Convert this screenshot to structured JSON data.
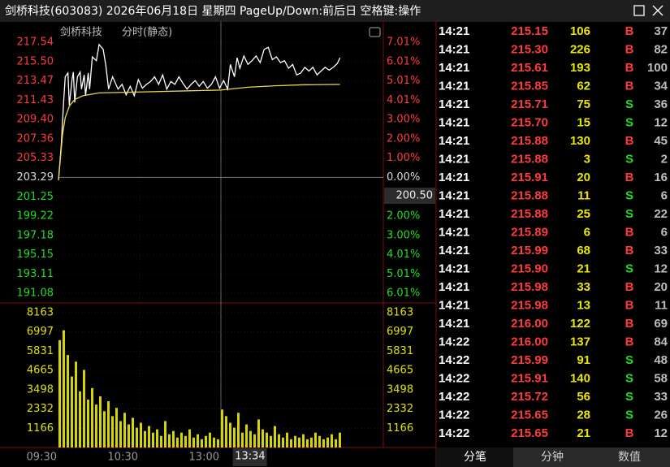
{
  "window": {
    "title": "剑桥科技(603083) 2026年06月18日 星期四 PageUp/Down:前后日 空格键:操作"
  },
  "chart_data": {
    "type": "line",
    "title": "剑桥科技",
    "subtitle": "分时(静态)",
    "xlim": [
      0,
      240
    ],
    "xticks": [
      {
        "value": 0,
        "label": "09:30"
      },
      {
        "value": 60,
        "label": "10:30"
      },
      {
        "value": 120,
        "label": "13:00"
      }
    ],
    "ylim": [
      190.14,
      218.57
    ],
    "yticks": [
      217.54,
      {
        "value": 215.5,
        "label": "215.50"
      },
      213.47,
      211.43,
      {
        "value": 209.4,
        "label": "209.40"
      },
      207.36,
      205.33,
      203.29,
      201.25,
      199.22,
      197.18,
      195.15,
      193.11,
      191.08
    ],
    "y_pct_labels": [
      "7.01%",
      "6.01%",
      "5.01%",
      "4.01%",
      "3.00%",
      "2.00%",
      "1.00%",
      "0.00%",
      null,
      "2.00%",
      "3.00%",
      "4.01%",
      "5.01%",
      "6.01%"
    ],
    "series": [
      {
        "color": "#ffffff",
        "x": [
          0,
          2,
          4,
          5,
          7,
          8,
          10,
          11,
          12,
          14,
          16,
          17,
          19,
          20,
          22,
          23,
          25,
          28,
          30,
          33,
          35,
          37,
          40,
          44,
          47,
          50,
          53,
          56,
          59,
          62,
          65,
          68,
          71,
          74,
          77,
          80,
          83,
          86,
          89,
          92,
          95,
          98,
          101,
          104,
          107,
          110,
          113,
          116,
          119,
          122,
          125,
          127,
          130,
          132,
          134,
          137,
          140,
          143,
          146,
          149,
          152,
          155,
          158,
          161,
          164,
          167,
          170,
          173,
          176,
          179,
          182,
          185,
          188,
          191,
          194,
          197,
          200,
          203,
          206,
          208
        ],
        "values": [
          203.0,
          206.6,
          211.7,
          213.9,
          214.3,
          210.9,
          213.6,
          214.4,
          211.2,
          213.9,
          214.4,
          212.6,
          214.1,
          211.9,
          214.3,
          212.6,
          216.0,
          215.6,
          217.3,
          216.8,
          215.1,
          212.6,
          213.9,
          212.6,
          213.1,
          212.0,
          212.9,
          211.9,
          213.6,
          212.7,
          213.1,
          213.4,
          213.9,
          213.1,
          214.1,
          212.6,
          213.4,
          213.1,
          213.9,
          213.2,
          212.6,
          213.1,
          213.5,
          212.9,
          213.4,
          212.7,
          213.1,
          213.9,
          212.7,
          213.5,
          212.6,
          215.2,
          213.9,
          215.9,
          214.8,
          216.1,
          215.2,
          215.6,
          216.1,
          215.4,
          216.8,
          217.0,
          215.7,
          216.0,
          215.4,
          215.6,
          214.8,
          215.2,
          214.1,
          214.3,
          214.9,
          214.5,
          214.9,
          214.1,
          214.5,
          214.9,
          214.6,
          214.9,
          215.3,
          215.9
        ]
      },
      {
        "color": "#e6d84a",
        "x": [
          0,
          3,
          5,
          8,
          12,
          18,
          30,
          60,
          90,
          120,
          140,
          160,
          180,
          208
        ],
        "values": [
          203.0,
          207.8,
          209.6,
          210.8,
          211.5,
          211.9,
          212.2,
          212.3,
          212.4,
          212.5,
          212.8,
          212.95,
          213.05,
          213.1
        ]
      }
    ],
    "volume": {
      "color": "#d4d400",
      "ylim": [
        0,
        8655
      ],
      "yticks": [
        8163,
        6997,
        5831,
        4665,
        3498,
        2332,
        1166
      ],
      "x": [
        0,
        3,
        6,
        9,
        12,
        15,
        18,
        21,
        24,
        27,
        30,
        33,
        36,
        39,
        42,
        45,
        48,
        51,
        54,
        57,
        60,
        63,
        66,
        69,
        72,
        75,
        78,
        81,
        84,
        87,
        90,
        93,
        96,
        99,
        102,
        105,
        108,
        111,
        114,
        117,
        120,
        123,
        126,
        129,
        132,
        135,
        138,
        141,
        144,
        147,
        150,
        153,
        156,
        159,
        162,
        165,
        168,
        171,
        174,
        177,
        180,
        183,
        186,
        189,
        192,
        195,
        198,
        201,
        204,
        207
      ],
      "values": [
        6500,
        7100,
        5600,
        4300,
        5200,
        3400,
        4700,
        2900,
        3600,
        2600,
        3100,
        2200,
        2800,
        1900,
        2400,
        1600,
        2100,
        1400,
        1800,
        1200,
        1500,
        1000,
        1300,
        900,
        1100,
        700,
        1600,
        800,
        1000,
        600,
        900,
        700,
        1100,
        600,
        800,
        500,
        700,
        900,
        600,
        500,
        2300,
        1900,
        1500,
        1200,
        2100,
        900,
        1400,
        1000,
        800,
        1700,
        1100,
        900,
        700,
        1300,
        800,
        600,
        900,
        500,
        700,
        600,
        800,
        500,
        600,
        900,
        700,
        500,
        600,
        800,
        500,
        900
      ]
    },
    "cursor": {
      "price": {
        "value": 200.5,
        "label": "200.50"
      },
      "time": {
        "value": 154,
        "label": "13:34"
      }
    }
  },
  "trades": {
    "rows": [
      [
        "14:21",
        "215.15",
        "106",
        "B",
        "37"
      ],
      [
        "14:21",
        "215.30",
        "226",
        "B",
        "82"
      ],
      [
        "14:21",
        "215.61",
        "193",
        "B",
        "100"
      ],
      [
        "14:21",
        "215.85",
        "62",
        "B",
        "34"
      ],
      [
        "14:21",
        "215.71",
        "75",
        "S",
        "36"
      ],
      [
        "14:21",
        "215.70",
        "15",
        "S",
        "12"
      ],
      [
        "14:21",
        "215.88",
        "130",
        "B",
        "45"
      ],
      [
        "14:21",
        "215.88",
        "3",
        "S",
        "2"
      ],
      [
        "14:21",
        "215.91",
        "20",
        "B",
        "16"
      ],
      [
        "14:21",
        "215.88",
        "11",
        "S",
        "6"
      ],
      [
        "14:21",
        "215.88",
        "25",
        "S",
        "22"
      ],
      [
        "14:21",
        "215.89",
        "6",
        "B",
        "6"
      ],
      [
        "14:21",
        "215.99",
        "68",
        "B",
        "33"
      ],
      [
        "14:21",
        "215.90",
        "21",
        "S",
        "12"
      ],
      [
        "14:21",
        "215.98",
        "33",
        "B",
        "20"
      ],
      [
        "14:21",
        "215.98",
        "13",
        "B",
        "11"
      ],
      [
        "14:21",
        "216.00",
        "122",
        "B",
        "69"
      ],
      [
        "14:22",
        "216.00",
        "137",
        "B",
        "84"
      ],
      [
        "14:22",
        "215.99",
        "91",
        "S",
        "48"
      ],
      [
        "14:22",
        "215.91",
        "140",
        "S",
        "58"
      ],
      [
        "14:22",
        "215.72",
        "56",
        "S",
        "33"
      ],
      [
        "14:22",
        "215.65",
        "28",
        "S",
        "26"
      ],
      [
        "14:22",
        "215.65",
        "21",
        "B",
        "12"
      ]
    ]
  },
  "tabs": [
    "分笔",
    "分钟",
    "数值"
  ]
}
